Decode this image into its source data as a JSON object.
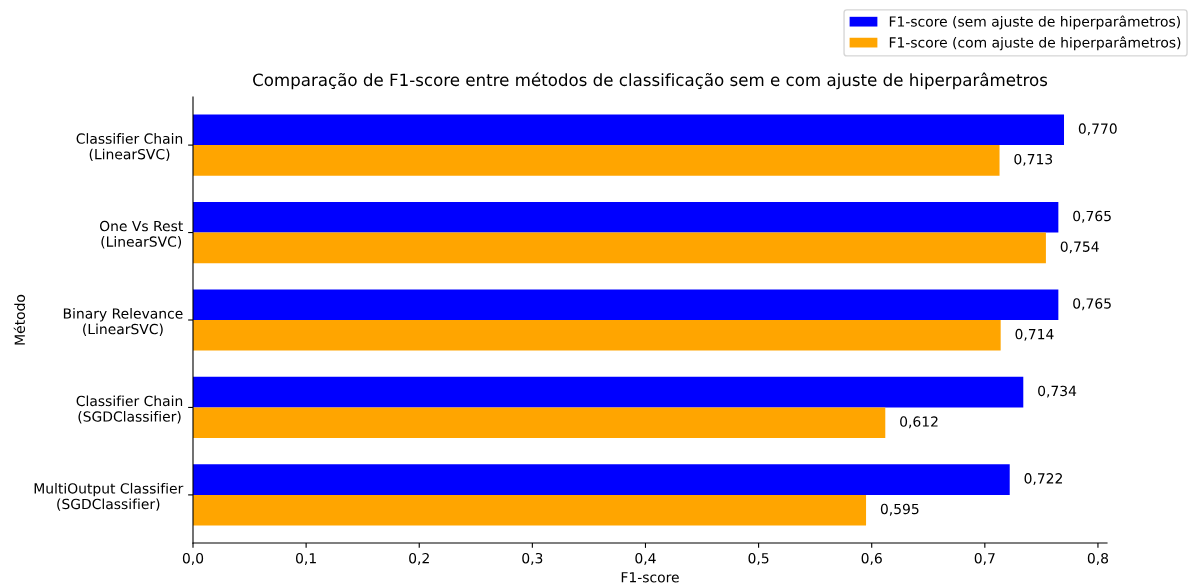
{
  "chart_data": {
    "type": "bar",
    "orientation": "horizontal",
    "title": "Comparação de F1-score entre métodos de classificação sem e com ajuste de hiperparâmetros",
    "xlabel": "F1-score",
    "ylabel": "Método",
    "categories": [
      "Classifier Chain\n(LinearSVC)",
      "One Vs Rest\n(LinearSVC)",
      "Binary Relevance\n(LinearSVC)",
      "Classifier Chain\n(SGDClassifier)",
      "MultiOutput Classifier\n(SGDClassifier)"
    ],
    "series": [
      {
        "name": "F1-score (sem ajuste de hiperparâmetros)",
        "color": "#0000ff",
        "values": [
          0.77,
          0.765,
          0.765,
          0.734,
          0.722
        ],
        "value_labels": [
          "0,770",
          "0,765",
          "0,765",
          "0,734",
          "0,722"
        ]
      },
      {
        "name": "F1-score (com ajuste de hiperparâmetros)",
        "color": "#ffa500",
        "values": [
          0.713,
          0.754,
          0.714,
          0.612,
          0.595
        ],
        "value_labels": [
          "0,713",
          "0,754",
          "0,714",
          "0,612",
          "0,595"
        ]
      }
    ],
    "xlim": [
      0,
      0.808
    ],
    "xticks": [
      {
        "value": 0,
        "label": "0,0"
      },
      {
        "value": 0.1,
        "label": "0,1"
      },
      {
        "value": 0.2,
        "label": "0,2"
      },
      {
        "value": 0.3,
        "label": "0,3"
      },
      {
        "value": 0.4,
        "label": "0,4"
      },
      {
        "value": 0.5,
        "label": "0,5"
      },
      {
        "value": 0.6,
        "label": "0,6"
      },
      {
        "value": 0.7,
        "label": "0,7"
      },
      {
        "value": 0.8,
        "label": "0,8"
      }
    ],
    "legend": "top right",
    "grid": false
  }
}
